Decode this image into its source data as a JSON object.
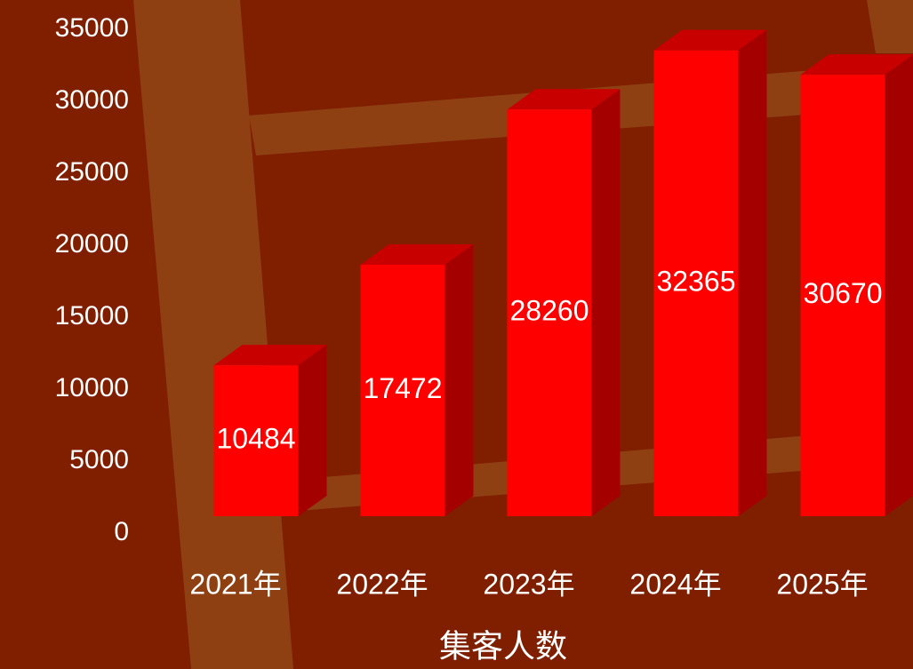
{
  "chart_data": {
    "type": "bar",
    "x_label": "集客人数",
    "categories": [
      "2021年",
      "2022年",
      "2023年",
      "2024年",
      "2025年"
    ],
    "values": [
      10484,
      17472,
      28260,
      32365,
      30670
    ],
    "color": "#ff0000",
    "ylim": [
      0,
      35000
    ],
    "yticks": [
      0,
      5000,
      10000,
      15000,
      20000,
      25000,
      30000,
      35000
    ]
  }
}
